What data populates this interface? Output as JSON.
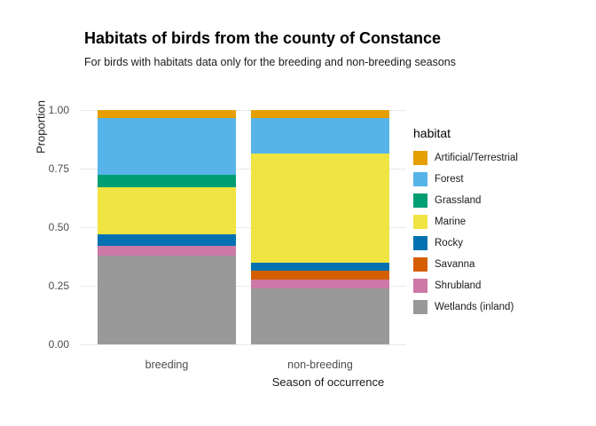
{
  "title": "Habitats of birds from the county of Constance",
  "subtitle": "For birds with habitats data only for the breeding and non-breeding seasons",
  "axes": {
    "x_title": "Season of occurrence",
    "y_title": "Proportion"
  },
  "legend": {
    "title": "habitat"
  },
  "chart_data": {
    "type": "bar",
    "variant": "stacked-proportion",
    "orientation": "vertical",
    "title": "Habitats of birds from the county of Constance",
    "subtitle": "For birds with habitats data only for the breeding and non-breeding seasons",
    "xlabel": "Season of occurrence",
    "ylabel": "Proportion",
    "categories": [
      "breeding",
      "non-breeding"
    ],
    "series": [
      {
        "name": "Artificial/Terrestrial",
        "color": "#E69F00",
        "values": [
          0.035,
          0.035
        ]
      },
      {
        "name": "Forest",
        "color": "#56B4E9",
        "values": [
          0.24,
          0.15
        ]
      },
      {
        "name": "Grassland",
        "color": "#009E73",
        "values": [
          0.055,
          0.0
        ]
      },
      {
        "name": "Marine",
        "color": "#F0E442",
        "values": [
          0.2,
          0.465
        ]
      },
      {
        "name": "Rocky",
        "color": "#0072B2",
        "values": [
          0.05,
          0.035
        ]
      },
      {
        "name": "Savanna",
        "color": "#D55E00",
        "values": [
          0.0,
          0.04
        ]
      },
      {
        "name": "Shrubland",
        "color": "#CC79A7",
        "values": [
          0.04,
          0.035
        ]
      },
      {
        "name": "Wetlands (inland)",
        "color": "#999999",
        "values": [
          0.38,
          0.24
        ]
      }
    ],
    "ylim": [
      0,
      1
    ],
    "yticks": {
      "values": [
        0,
        0.25,
        0.5,
        0.75,
        1
      ],
      "labels": [
        "0.00",
        "0.25",
        "0.50",
        "0.75",
        "1.00"
      ]
    },
    "legend_title": "habitat",
    "legend_position": "right",
    "grid": true
  }
}
